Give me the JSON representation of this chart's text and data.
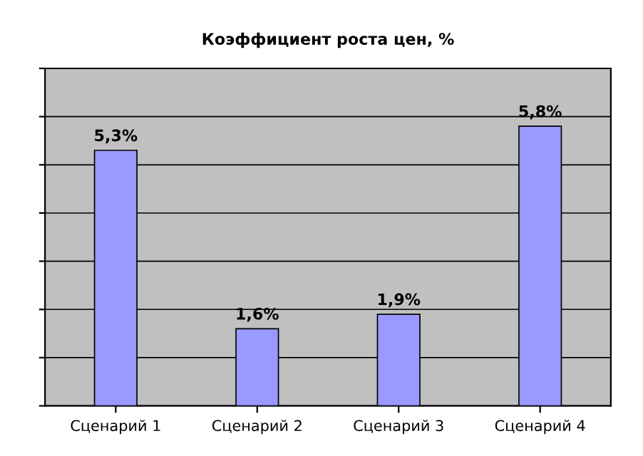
{
  "chart_data": {
    "type": "bar",
    "title": "Коэффициент роста цен, %",
    "categories": [
      "Сценарий 1",
      "Сценарий 2",
      "Сценарий 3",
      "Сценарий 4"
    ],
    "values": [
      5.3,
      1.6,
      1.9,
      5.8
    ],
    "value_labels": [
      "5,3%",
      "1,6%",
      "1,9%",
      "5,8%"
    ],
    "color": "#9999ff",
    "ylim": [
      0,
      7
    ],
    "yticks": [
      {
        "value": 0,
        "label": null
      },
      {
        "value": 1,
        "label": null
      },
      {
        "value": 2,
        "label": null
      },
      {
        "value": 3,
        "label": null
      },
      {
        "value": 4,
        "label": null
      },
      {
        "value": 5,
        "label": null
      },
      {
        "value": 6,
        "label": null
      },
      {
        "value": 7,
        "label": null
      }
    ],
    "tick_labels": "x",
    "grid": "y"
  }
}
